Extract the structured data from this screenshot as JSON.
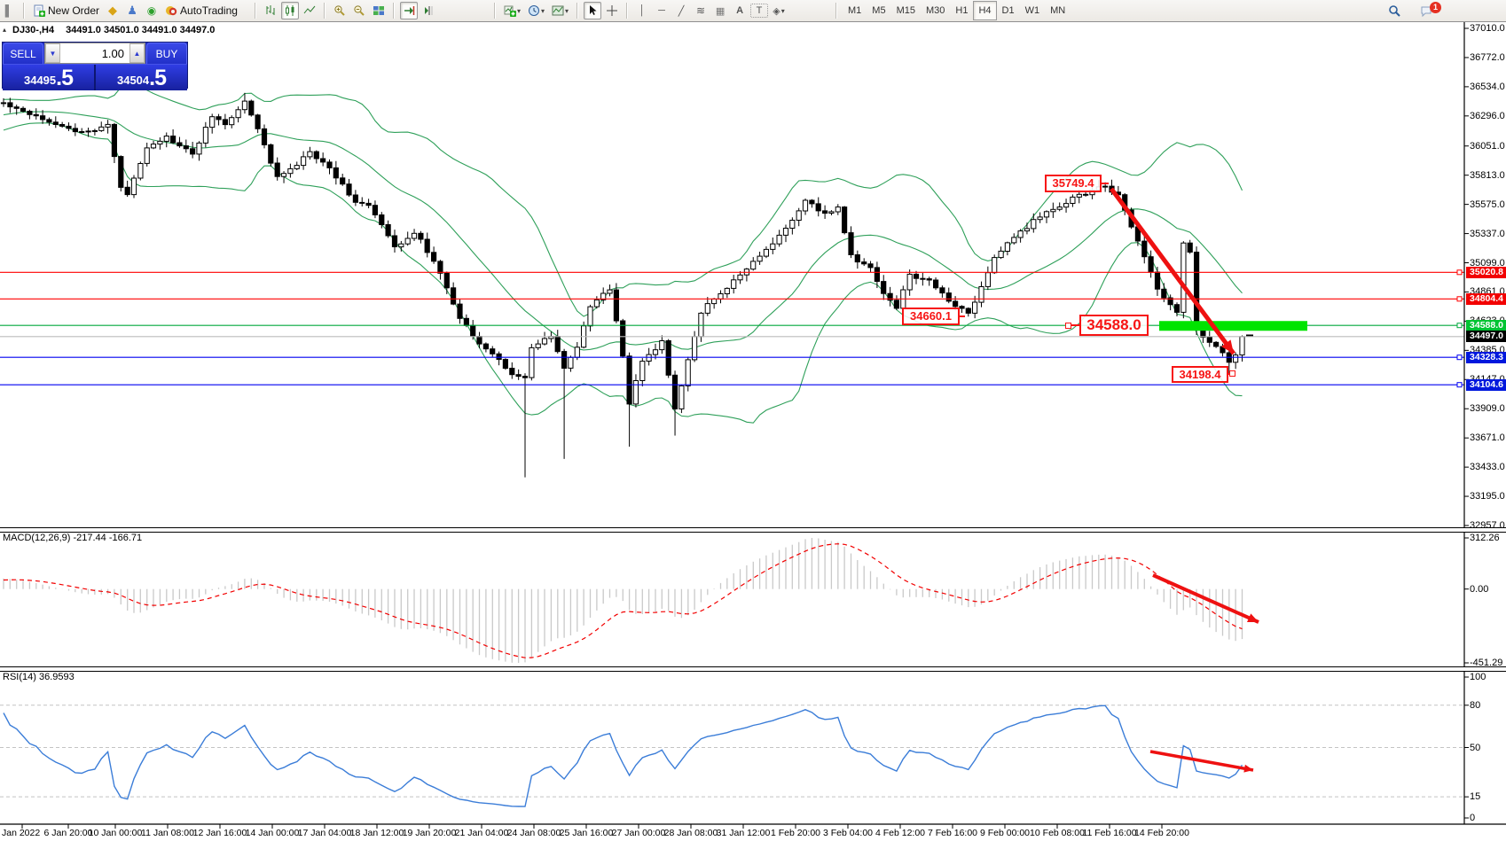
{
  "toolbar": {
    "new_order_label": "New Order",
    "autotrading_label": "AutoTrading",
    "timeframes": [
      "M1",
      "M5",
      "M15",
      "M30",
      "H1",
      "H4",
      "D1",
      "W1",
      "MN"
    ],
    "active_timeframe": "H4",
    "notification_count": "1"
  },
  "title": {
    "symbol": "DJ30-,H4",
    "ohlc": "34491.0 34501.0 34491.0 34497.0"
  },
  "one_click": {
    "sell_label": "SELL",
    "buy_label": "BUY",
    "volume": "1.00",
    "sell_price_small": "34495",
    "sell_price_big": ".5",
    "buy_price_small": "34504",
    "buy_price_big": ".5"
  },
  "price_axis_labels": [
    "37010.0",
    "36772.0",
    "36534.0",
    "36296.0",
    "36051.0",
    "35813.0",
    "35575.0",
    "35337.0",
    "35099.0",
    "34861.0",
    "34623.0",
    "34385.0",
    "34147.0",
    "33909.0",
    "33671.0",
    "33433.0",
    "33195.0",
    "32957.0"
  ],
  "time_axis_labels": [
    "Jan 2022",
    "6 Jan 20:00",
    "10 Jan 00:00",
    "11 Jan 08:00",
    "12 Jan 16:00",
    "14 Jan 00:00",
    "17 Jan 04:00",
    "18 Jan 12:00",
    "19 Jan 20:00",
    "21 Jan 04:00",
    "24 Jan 08:00",
    "25 Jan 16:00",
    "27 Jan 00:00",
    "28 Jan 08:00",
    "31 Jan 12:00",
    "1 Feb 20:00",
    "3 Feb 04:00",
    "4 Feb 12:00",
    "7 Feb 16:00",
    "9 Feb 00:00",
    "10 Feb 08:00",
    "11 Feb 16:00",
    "14 Feb 20:00"
  ],
  "annotations": {
    "peak": "35749.4",
    "support_mid": "34660.1",
    "level_big": "34588.0",
    "low": "34198.4"
  },
  "indicators": {
    "macd_label": "MACD(12,26,9) -217.44 -166.71",
    "macd_axis": [
      "312.26",
      "0.00",
      "-451.29"
    ],
    "rsi_label": "RSI(14) 36.9593",
    "rsi_axis": [
      "100",
      "80",
      "50",
      "15",
      "0"
    ]
  },
  "chart_data": {
    "type": "candlestick",
    "symbol": "DJ30-",
    "timeframe": "H4",
    "current_ohlc": {
      "open": 34491.0,
      "high": 34501.0,
      "low": 34491.0,
      "close": 34497.0
    },
    "bid": 34495.5,
    "ask": 34504.5,
    "price_axis_ticks": [
      37010.0,
      36772.0,
      36534.0,
      36296.0,
      36051.0,
      35813.0,
      35575.0,
      35337.0,
      35099.0,
      34861.0,
      34623.0,
      34385.0,
      34147.0,
      33909.0,
      33671.0,
      33433.0,
      33195.0,
      32957.0
    ],
    "levels": [
      {
        "price": 35020.8,
        "color": "#ff0000",
        "tag_bg": "#f20000",
        "tag_fg": "#ffffff"
      },
      {
        "price": 34804.4,
        "color": "#ff0000",
        "tag_bg": "#f20000",
        "tag_fg": "#ffffff"
      },
      {
        "price": 34588.0,
        "color": "#00a83c",
        "tag_bg": "#00c432",
        "tag_fg": "#ffffff"
      },
      {
        "price": 34497.0,
        "color": "#bbbbbb",
        "tag_bg": "#000000",
        "tag_fg": "#ffffff"
      },
      {
        "price": 34328.3,
        "color": "#0000f0",
        "tag_bg": "#0018dd",
        "tag_fg": "#ffffff"
      },
      {
        "price": 34104.6,
        "color": "#0000f0",
        "tag_bg": "#0018dd",
        "tag_fg": "#ffffff"
      }
    ],
    "highlight_zone": {
      "price": 34588.0,
      "color": "#00e400"
    },
    "annotation_prices": [
      35749.4,
      34660.1,
      34588.0,
      34198.4
    ],
    "bollinger": {
      "period": 20,
      "deviation": 2,
      "color": "#2fa05a"
    },
    "macd": {
      "fast": 12,
      "slow": 26,
      "signal": 9,
      "value": -217.44,
      "signal_value": -166.71,
      "axis_max": 312.26,
      "axis_min": -451.29
    },
    "rsi": {
      "period": 14,
      "value": 36.9593,
      "level_lines": [
        80,
        50,
        15
      ],
      "axis": [
        100,
        80,
        50,
        15,
        0
      ]
    },
    "bars_total": 191,
    "close_keyframes": [
      [
        0,
        36400
      ],
      [
        5,
        36300
      ],
      [
        12,
        36150
      ],
      [
        16,
        36230
      ],
      [
        18,
        35700
      ],
      [
        19,
        35660
      ],
      [
        22,
        36050
      ],
      [
        25,
        36120
      ],
      [
        29,
        35980
      ],
      [
        32,
        36300
      ],
      [
        34,
        36220
      ],
      [
        37,
        36420
      ],
      [
        39,
        36180
      ],
      [
        42,
        35800
      ],
      [
        44,
        35850
      ],
      [
        47,
        36000
      ],
      [
        50,
        35870
      ],
      [
        54,
        35600
      ],
      [
        56,
        35560
      ],
      [
        58,
        35400
      ],
      [
        60,
        35220
      ],
      [
        63,
        35350
      ],
      [
        65,
        35200
      ],
      [
        68,
        34900
      ],
      [
        70,
        34650
      ],
      [
        73,
        34450
      ],
      [
        75,
        34350
      ],
      [
        78,
        34200
      ],
      [
        80,
        34150
      ],
      [
        81,
        34400
      ],
      [
        84,
        34500
      ],
      [
        86,
        34250
      ],
      [
        88,
        34400
      ],
      [
        90,
        34750
      ],
      [
        93,
        34880
      ],
      [
        95,
        34350
      ],
      [
        96,
        33950
      ],
      [
        98,
        34300
      ],
      [
        101,
        34450
      ],
      [
        103,
        33900
      ],
      [
        105,
        34300
      ],
      [
        107,
        34700
      ],
      [
        111,
        34900
      ],
      [
        114,
        35050
      ],
      [
        118,
        35250
      ],
      [
        121,
        35450
      ],
      [
        123,
        35600
      ],
      [
        126,
        35500
      ],
      [
        128,
        35550
      ],
      [
        130,
        35150
      ],
      [
        133,
        35050
      ],
      [
        135,
        34850
      ],
      [
        137,
        34740
      ],
      [
        139,
        35000
      ],
      [
        142,
        34950
      ],
      [
        145,
        34800
      ],
      [
        148,
        34680
      ],
      [
        150,
        34900
      ],
      [
        152,
        35150
      ],
      [
        155,
        35300
      ],
      [
        158,
        35440
      ],
      [
        162,
        35560
      ],
      [
        165,
        35650
      ],
      [
        169,
        35720
      ],
      [
        171,
        35650
      ],
      [
        173,
        35400
      ],
      [
        175,
        35150
      ],
      [
        177,
        34900
      ],
      [
        178,
        34800
      ],
      [
        180,
        34700
      ],
      [
        181,
        35250
      ],
      [
        182,
        35200
      ],
      [
        183,
        34550
      ],
      [
        185,
        34450
      ],
      [
        187,
        34350
      ],
      [
        188,
        34300
      ],
      [
        189,
        34330
      ],
      [
        190,
        34497
      ]
    ],
    "wick_spikes": [
      {
        "bar": 37,
        "high": 36484
      },
      {
        "bar": 80,
        "low": 33350
      },
      {
        "bar": 86,
        "low": 33500
      },
      {
        "bar": 96,
        "low": 33600
      },
      {
        "bar": 103,
        "low": 33690
      },
      {
        "bar": 148,
        "low": 34660.1
      },
      {
        "bar": 169,
        "high": 35749.4
      },
      {
        "bar": 188,
        "low": 34198.4
      }
    ],
    "trend_arrows": [
      {
        "panel": "price",
        "from_bar": 170,
        "from_price": 35720,
        "to_bar": 189,
        "to_price": 34370
      },
      {
        "panel": "macd",
        "note": "down"
      },
      {
        "panel": "rsi",
        "note": "down"
      }
    ]
  }
}
